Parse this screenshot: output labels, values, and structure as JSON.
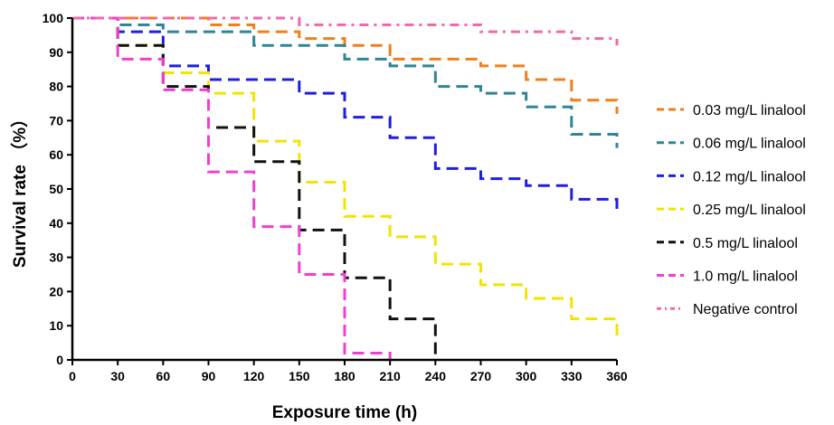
{
  "chart_data": {
    "type": "line",
    "step": true,
    "xlabel": "Exposure time (h)",
    "ylabel": "Survival rate （%）",
    "xlim": [
      0,
      360
    ],
    "ylim": [
      0,
      100
    ],
    "xticks": [
      0,
      30,
      60,
      90,
      120,
      150,
      180,
      210,
      240,
      270,
      300,
      330,
      360
    ],
    "yticks": [
      0,
      10,
      20,
      30,
      40,
      50,
      60,
      70,
      80,
      90,
      100
    ],
    "grid": false,
    "legend_position": "right",
    "series": [
      {
        "name": "0.03 mg/L linalool",
        "color": "#f07f1a",
        "dash": "dashed",
        "x": [
          0,
          90,
          120,
          150,
          180,
          210,
          270,
          300,
          330,
          360
        ],
        "y": [
          100,
          98,
          96,
          94,
          92,
          88,
          86,
          82,
          76,
          72
        ]
      },
      {
        "name": "0.06 mg/L linalool",
        "color": "#2f8595",
        "dash": "dashed",
        "x": [
          0,
          30,
          60,
          120,
          180,
          210,
          240,
          270,
          300,
          330,
          360
        ],
        "y": [
          100,
          98,
          96,
          92,
          88,
          86,
          80,
          78,
          74,
          66,
          62
        ]
      },
      {
        "name": "0.12 mg/L linalool",
        "color": "#1f1fe0",
        "dash": "dashed",
        "x": [
          0,
          30,
          60,
          90,
          150,
          180,
          210,
          240,
          270,
          300,
          330,
          360
        ],
        "y": [
          100,
          96,
          86,
          82,
          78,
          71,
          65,
          56,
          53,
          51,
          47,
          43
        ]
      },
      {
        "name": "0.25 mg/L linalool",
        "color": "#f2e400",
        "dash": "dashed",
        "x": [
          0,
          30,
          60,
          90,
          120,
          150,
          180,
          210,
          240,
          270,
          300,
          330,
          360
        ],
        "y": [
          100,
          92,
          84,
          78,
          64,
          52,
          42,
          36,
          28,
          22,
          18,
          12,
          7
        ]
      },
      {
        "name": "0.5 mg/L linalool",
        "color": "#111111",
        "dash": "dashed",
        "x": [
          0,
          30,
          60,
          90,
          120,
          150,
          180,
          210,
          240
        ],
        "y": [
          100,
          92,
          80,
          68,
          58,
          38,
          24,
          12,
          0
        ]
      },
      {
        "name": "1.0 mg/L linalool",
        "color": "#f03fd0",
        "dash": "dashed",
        "x": [
          0,
          30,
          60,
          90,
          120,
          150,
          180,
          210
        ],
        "y": [
          100,
          88,
          79,
          55,
          39,
          25,
          2,
          0
        ]
      },
      {
        "name": "Negative control",
        "color": "#f06aa8",
        "dash": "dash-dot",
        "x": [
          0,
          150,
          270,
          330,
          360
        ],
        "y": [
          100,
          98,
          96,
          94,
          92
        ]
      }
    ]
  }
}
